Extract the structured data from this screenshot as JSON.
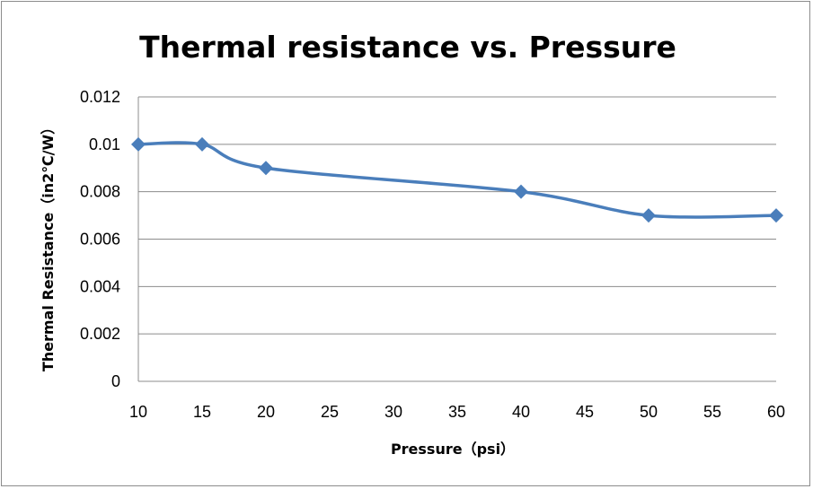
{
  "chart_data": {
    "type": "line",
    "title": "Thermal resistance vs. Pressure",
    "xlabel": "Pressure（psi）",
    "ylabel": "Thermal Resistance（in2℃/W）",
    "xlim": [
      10,
      60
    ],
    "ylim": [
      0,
      0.012
    ],
    "x_ticks": [
      "10",
      "15",
      "20",
      "25",
      "30",
      "35",
      "40",
      "45",
      "50",
      "55",
      "60"
    ],
    "y_ticks": [
      "0",
      "0.002",
      "0.004",
      "0.006",
      "0.008",
      "0.01",
      "0.012"
    ],
    "grid": true,
    "series": [
      {
        "name": "Thermal Resistance",
        "color": "#4a7ebb",
        "marker": "diamond",
        "smooth": true,
        "x": [
          10,
          15,
          20,
          40,
          50,
          60
        ],
        "y": [
          0.01,
          0.01,
          0.009,
          0.008,
          0.007,
          0.007
        ]
      }
    ]
  }
}
